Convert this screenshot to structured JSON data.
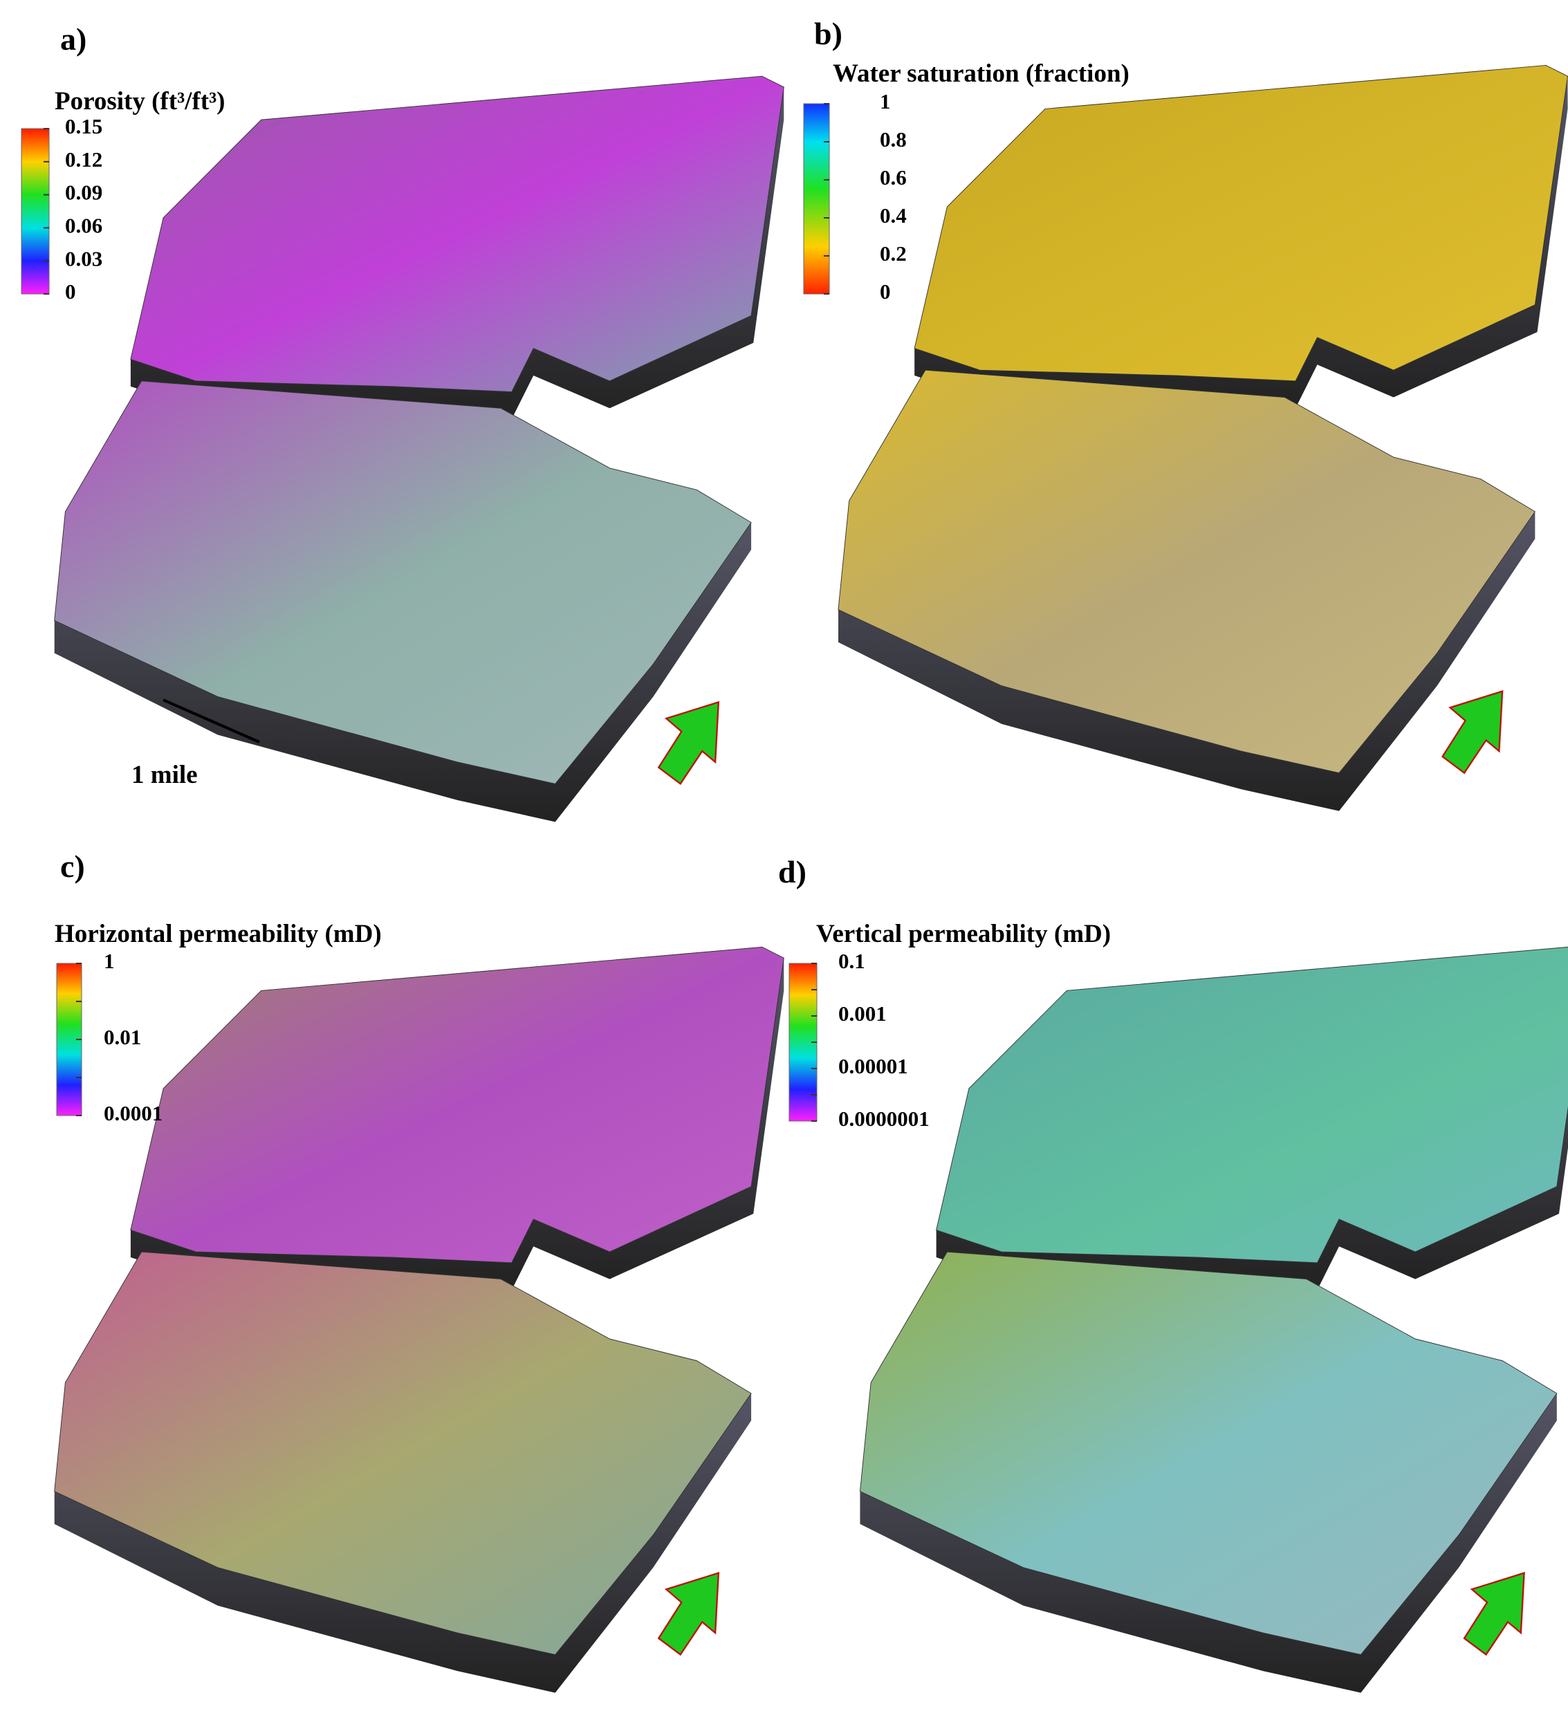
{
  "panels": [
    {
      "label": "a)",
      "legend_title": "Porosity (ft³/ft³)",
      "legend_ticks": [
        "0.15",
        "0.12",
        "0.09",
        "0.06",
        "0.03",
        "0"
      ]
    },
    {
      "label": "b)",
      "legend_title": "Water saturation (fraction)",
      "legend_ticks": [
        "1",
        "0.8",
        "0.6",
        "0.4",
        "0.2",
        "0"
      ]
    },
    {
      "label": "c)",
      "legend_title": "Horizontal permeability (mD)",
      "legend_ticks": [
        "1",
        "0.01",
        "0.0001"
      ]
    },
    {
      "label": "d)",
      "legend_title": "Vertical permeability (mD)",
      "legend_ticks": [
        "0.1",
        "0.001",
        "0.00001",
        "0.0000001"
      ]
    }
  ],
  "scale_bar_label": "1 mile"
}
